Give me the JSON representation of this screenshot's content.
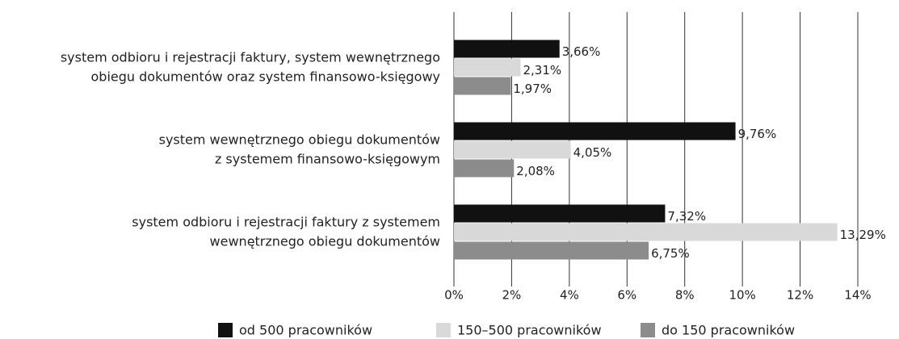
{
  "chart_data": {
    "type": "bar",
    "orientation": "horizontal",
    "categories": [
      [
        "system odbioru i rejestracji faktury, system wewnętrznego",
        "obiegu dokumentów oraz system finansowo-księgowy"
      ],
      [
        "system wewnętrznego obiegu dokumentów",
        "z systemem finansowo-księgowym"
      ],
      [
        "system odbioru i rejestracji faktury z systemem",
        "wewnętrznego obiegu dokumentów"
      ]
    ],
    "series": [
      {
        "name": "od 500 pracowników",
        "color": "#111111",
        "values": [
          3.66,
          9.76,
          7.32
        ],
        "value_labels": [
          "3,66%",
          "9,76%",
          "7,32%"
        ]
      },
      {
        "name": "150–500 pracowników",
        "color": "#d9d9d9",
        "values": [
          2.31,
          4.05,
          13.29
        ],
        "value_labels": [
          "2,31%",
          "4,05%",
          "13,29%"
        ]
      },
      {
        "name": "do 150 pracowników",
        "color": "#8c8c8c",
        "values": [
          1.97,
          2.08,
          6.75
        ],
        "value_labels": [
          "1,97%",
          "2,08%",
          "6,75%"
        ]
      }
    ],
    "xlim": [
      0,
      14
    ],
    "xticks": [
      {
        "value": 0,
        "label": "0%"
      },
      {
        "value": 2,
        "label": "2%"
      },
      {
        "value": 4,
        "label": "4%"
      },
      {
        "value": 6,
        "label": "6%"
      },
      {
        "value": 8,
        "label": "8%"
      },
      {
        "value": 10,
        "label": "10%"
      },
      {
        "value": 12,
        "label": "12%"
      },
      {
        "value": 14,
        "label": "14%"
      }
    ],
    "grid": true,
    "legend": "bottom"
  }
}
